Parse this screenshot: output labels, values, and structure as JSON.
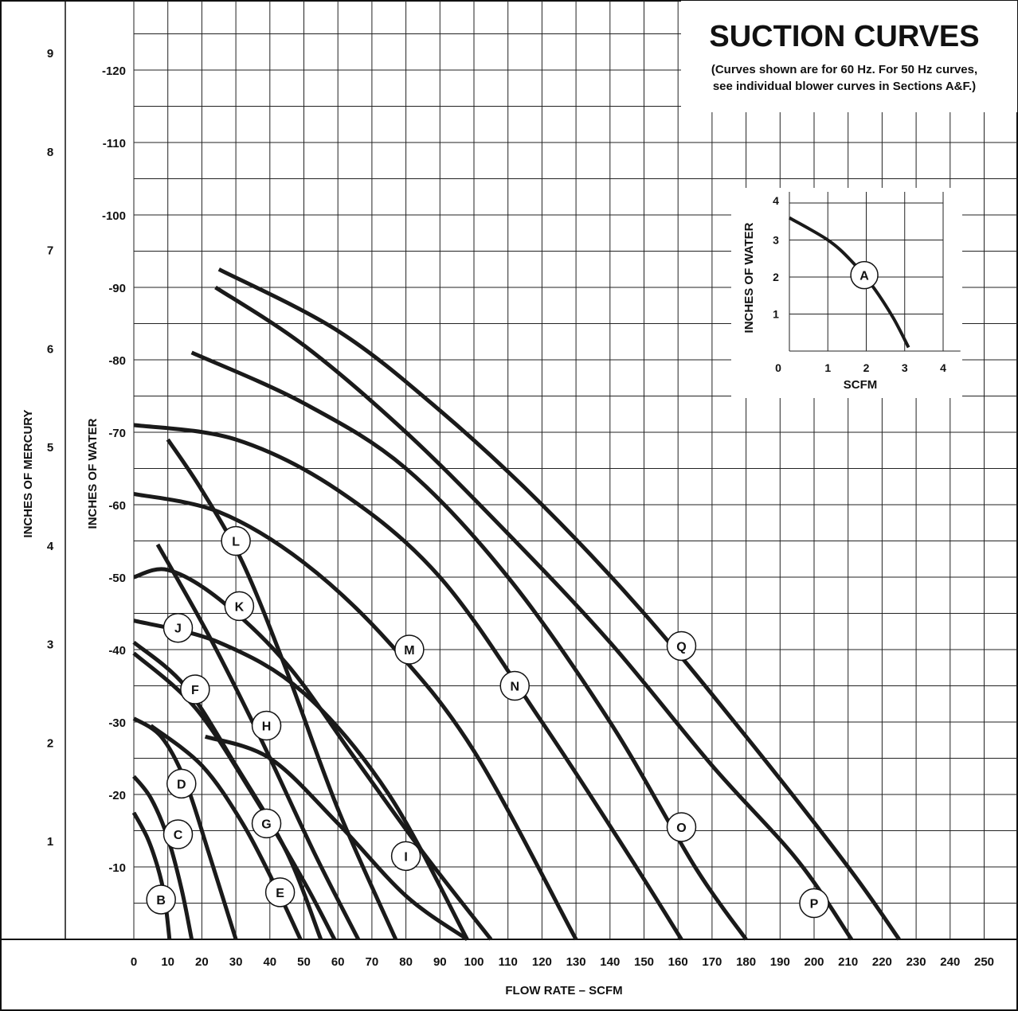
{
  "chart_data": {
    "type": "line",
    "title": "SUCTION CURVES",
    "subtitle_lines": [
      "(Curves shown are for 60 Hz. For 50 Hz curves,",
      "see individual blower curves in Sections A&F.)"
    ],
    "xlabel": "FLOW RATE – SCFM",
    "ylabel_water": "INCHES OF WATER",
    "ylabel_mercury": "INCHES OF MERCURY",
    "xlim": [
      0,
      255
    ],
    "ylim_water": [
      0,
      -120
    ],
    "grid": true,
    "x_ticks": [
      "0",
      "10",
      "20",
      "30",
      "40",
      "50",
      "60",
      "70",
      "80",
      "90",
      "100",
      "110",
      "120",
      "130",
      "140",
      "150",
      "160",
      "170",
      "180",
      "190",
      "200",
      "210",
      "220",
      "230",
      "240",
      "250"
    ],
    "y_water_ticks": [
      {
        "value": -10,
        "label": "-10"
      },
      {
        "value": -20,
        "label": "-20"
      },
      {
        "value": -30,
        "label": "-30"
      },
      {
        "value": -40,
        "label": "-40"
      },
      {
        "value": -50,
        "label": "-50"
      },
      {
        "value": -60,
        "label": "-60"
      },
      {
        "value": -70,
        "label": "-70"
      },
      {
        "value": -80,
        "label": "-80"
      },
      {
        "value": -90,
        "label": "-90"
      },
      {
        "value": -100,
        "label": "-100"
      },
      {
        "value": -110,
        "label": "-110"
      },
      {
        "value": -120,
        "label": "-120"
      }
    ],
    "y_mercury_ticks": [
      {
        "value": 1,
        "label": "1"
      },
      {
        "value": 2,
        "label": "2"
      },
      {
        "value": 3,
        "label": "3"
      },
      {
        "value": 4,
        "label": "4"
      },
      {
        "value": 5,
        "label": "5"
      },
      {
        "value": 6,
        "label": "6"
      },
      {
        "value": 7,
        "label": "7"
      },
      {
        "value": 8,
        "label": "8"
      },
      {
        "value": 9,
        "label": "9"
      }
    ],
    "series": [
      {
        "name": "B",
        "label_at": [
          8,
          -5.5
        ],
        "points": [
          [
            0,
            -17.5
          ],
          [
            4,
            -14
          ],
          [
            7,
            -10
          ],
          [
            9,
            -6
          ],
          [
            10.5,
            0
          ]
        ]
      },
      {
        "name": "C",
        "label_at": [
          13,
          -14.5
        ],
        "points": [
          [
            0,
            -22.5
          ],
          [
            5,
            -19.5
          ],
          [
            10,
            -14
          ],
          [
            14,
            -7
          ],
          [
            17,
            0
          ]
        ]
      },
      {
        "name": "D",
        "label_at": [
          14,
          -21.5
        ],
        "points": [
          [
            0,
            -30.5
          ],
          [
            8,
            -28
          ],
          [
            15,
            -22
          ],
          [
            22,
            -12
          ],
          [
            30,
            0
          ]
        ]
      },
      {
        "name": "E",
        "label_at": [
          43,
          -6.5
        ],
        "points": [
          [
            5,
            -29.5
          ],
          [
            20,
            -24
          ],
          [
            32,
            -16
          ],
          [
            42,
            -7
          ],
          [
            49,
            0
          ]
        ]
      },
      {
        "name": "F",
        "label_at": [
          18,
          -34.5
        ],
        "points": [
          [
            0,
            -41
          ],
          [
            15,
            -35
          ],
          [
            30,
            -24
          ],
          [
            45,
            -12
          ],
          [
            55,
            0
          ]
        ]
      },
      {
        "name": "G",
        "label_at": [
          39,
          -16
        ],
        "points": [
          [
            0,
            -39.5
          ],
          [
            18,
            -32
          ],
          [
            35,
            -20
          ],
          [
            50,
            -8
          ],
          [
            59,
            0
          ]
        ]
      },
      {
        "name": "H",
        "label_at": [
          39,
          -29.5
        ],
        "points": [
          [
            7,
            -54.5
          ],
          [
            22,
            -42
          ],
          [
            37,
            -28
          ],
          [
            53,
            -12
          ],
          [
            66,
            0
          ]
        ]
      },
      {
        "name": "I",
        "label_at": [
          80,
          -11.5
        ],
        "points": [
          [
            21,
            -28
          ],
          [
            40,
            -25
          ],
          [
            60,
            -16
          ],
          [
            80,
            -6
          ],
          [
            98,
            0
          ]
        ]
      },
      {
        "name": "J",
        "label_at": [
          13,
          -43
        ],
        "points": [
          [
            0,
            -44
          ],
          [
            25,
            -41
          ],
          [
            50,
            -34
          ],
          [
            75,
            -20
          ],
          [
            98,
            0
          ]
        ]
      },
      {
        "name": "K",
        "label_at": [
          31,
          -46
        ],
        "points": [
          [
            0,
            -50
          ],
          [
            10,
            -51
          ],
          [
            25,
            -47
          ],
          [
            45,
            -38
          ],
          [
            65,
            -25
          ],
          [
            85,
            -12
          ],
          [
            105,
            0
          ]
        ]
      },
      {
        "name": "L",
        "label_at": [
          30,
          -55
        ],
        "points": [
          [
            10,
            -69
          ],
          [
            20,
            -62
          ],
          [
            32,
            -52
          ],
          [
            45,
            -37
          ],
          [
            60,
            -18
          ],
          [
            77,
            0
          ]
        ]
      },
      {
        "name": "M",
        "label_at": [
          81,
          -40
        ],
        "points": [
          [
            0,
            -61.5
          ],
          [
            25,
            -59
          ],
          [
            50,
            -52
          ],
          [
            75,
            -41
          ],
          [
            100,
            -26
          ],
          [
            130,
            0
          ]
        ]
      },
      {
        "name": "N",
        "label_at": [
          112,
          -35
        ],
        "points": [
          [
            0,
            -71
          ],
          [
            30,
            -69
          ],
          [
            60,
            -62
          ],
          [
            90,
            -50
          ],
          [
            120,
            -30
          ],
          [
            145,
            -12
          ],
          [
            161,
            0
          ]
        ]
      },
      {
        "name": "O",
        "label_at": [
          161,
          -15.5
        ],
        "points": [
          [
            17,
            -81
          ],
          [
            50,
            -74
          ],
          [
            80,
            -65
          ],
          [
            110,
            -50
          ],
          [
            140,
            -30
          ],
          [
            165,
            -10
          ],
          [
            180,
            0
          ]
        ]
      },
      {
        "name": "P",
        "label_at": [
          200,
          -5
        ],
        "points": [
          [
            24,
            -90
          ],
          [
            50,
            -82
          ],
          [
            80,
            -70
          ],
          [
            110,
            -56
          ],
          [
            140,
            -41
          ],
          [
            170,
            -24
          ],
          [
            195,
            -11
          ],
          [
            211,
            0
          ]
        ]
      },
      {
        "name": "Q",
        "label_at": [
          161,
          -40.5
        ],
        "points": [
          [
            25,
            -92.5
          ],
          [
            60,
            -84
          ],
          [
            90,
            -73
          ],
          [
            120,
            -60
          ],
          [
            150,
            -45
          ],
          [
            180,
            -28
          ],
          [
            210,
            -10
          ],
          [
            225,
            0
          ]
        ]
      }
    ],
    "inset": {
      "xlabel": "SCFM",
      "ylabel": "INCHES OF WATER",
      "xlim": [
        0,
        4
      ],
      "ylim": [
        0,
        4
      ],
      "x_ticks": [
        "0",
        "1",
        "2",
        "3",
        "4"
      ],
      "y_ticks": [
        "1",
        "2",
        "3",
        "4"
      ],
      "series": [
        {
          "name": "A",
          "label_at": [
            1.95,
            2.05
          ],
          "points": [
            [
              0,
              3.6
            ],
            [
              1,
              3
            ],
            [
              1.6,
              2.45
            ],
            [
              2.2,
              1.7
            ],
            [
              2.7,
              0.9
            ],
            [
              3.1,
              0.1
            ]
          ]
        }
      ]
    }
  }
}
